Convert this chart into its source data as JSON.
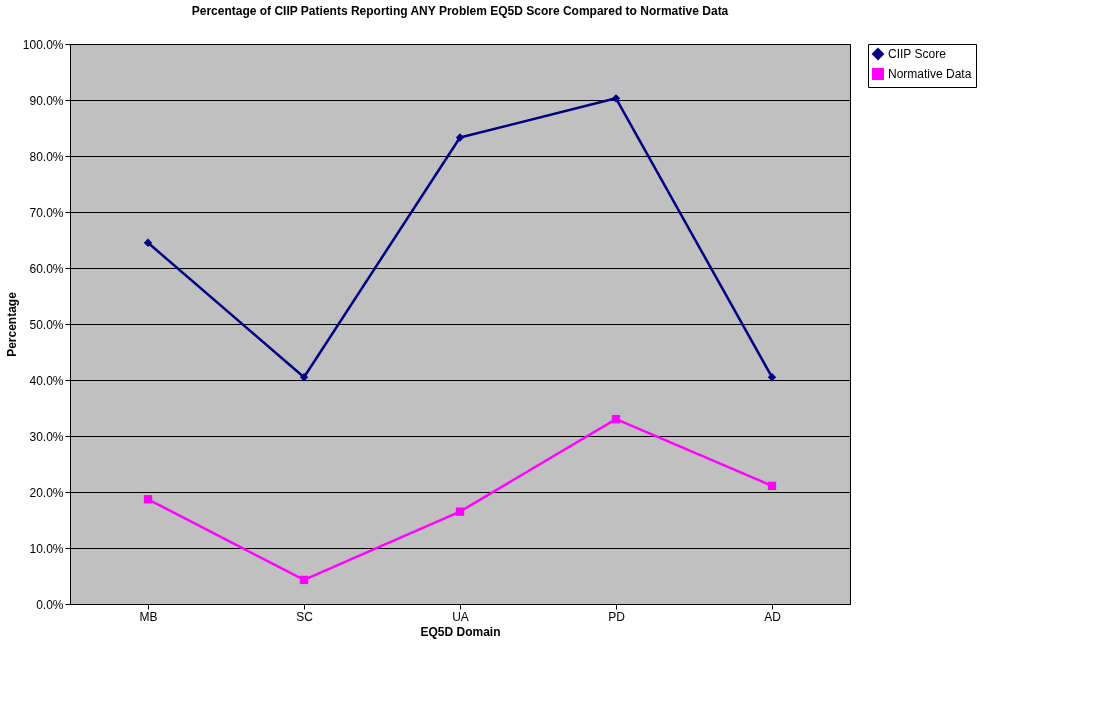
{
  "chart_data": {
    "type": "line",
    "title": "Percentage of CIIP Patients Reporting ANY Problem EQ5D Score Compared to Normative Data",
    "xlabel": "EQ5D Domain",
    "ylabel": "Percentage",
    "categories": [
      "MB",
      "SC",
      "UA",
      "PD",
      "AD"
    ],
    "series": [
      {
        "name": "CIIP Score",
        "color": "#000080",
        "marker": "diamond",
        "values": [
          64.5,
          40.5,
          83.3,
          90.3,
          40.5
        ]
      },
      {
        "name": "Normative Data",
        "color": "#ff00ff",
        "marker": "square",
        "values": [
          18.7,
          4.3,
          16.5,
          33.0,
          21.1
        ]
      }
    ],
    "ylim": [
      0,
      100
    ],
    "yticks": [
      {
        "value": 0,
        "label": "0.0%"
      },
      {
        "value": 10,
        "label": "10.0%"
      },
      {
        "value": 20,
        "label": "20.0%"
      },
      {
        "value": 30,
        "label": "30.0%"
      },
      {
        "value": 40,
        "label": "40.0%"
      },
      {
        "value": 50,
        "label": "50.0%"
      },
      {
        "value": 60,
        "label": "60.0%"
      },
      {
        "value": 70,
        "label": "70.0%"
      },
      {
        "value": 80,
        "label": "80.0%"
      },
      {
        "value": 90,
        "label": "90.0%"
      },
      {
        "value": 100,
        "label": "100.0%"
      }
    ],
    "grid": "y",
    "legend": "right",
    "line_style": "solid"
  }
}
